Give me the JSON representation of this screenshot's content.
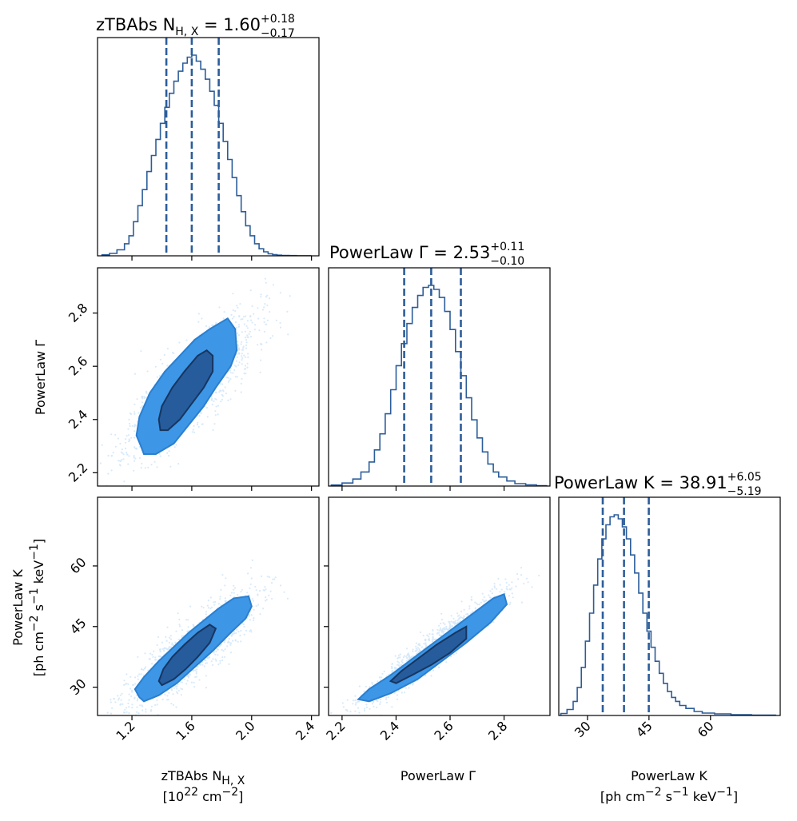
{
  "chart_data": {
    "type": "corner",
    "colors": {
      "line": "#2c5d9a",
      "outer_fill": "#3d96e6",
      "inner_fill": "#265c9c",
      "inner_edge": "#17355f",
      "scatter": "#d4e8fa"
    },
    "parameters": [
      {
        "name": "nh",
        "range": [
          0.97,
          2.45
        ],
        "ticks": [
          1.2,
          1.6,
          2.0,
          2.4
        ],
        "tick_labels": [
          "1.2",
          "1.6",
          "2.0",
          "2.4"
        ],
        "label_main": "zTBAbs N",
        "label_sub": "H, X",
        "label_line2_a": "[10",
        "label_line2_sup": "22",
        "label_line2_b": " cm",
        "label_line2_sup2": "−2",
        "label_line2_c": "]",
        "title_prefix": "zTBAbs N",
        "title_sub": "H, X",
        "title_mid": " = 1.60",
        "title_plus": "+0.18",
        "title_minus": "−0.17",
        "median": 1.6,
        "q16": 1.43,
        "q84": 1.78,
        "hist_x": [
          1.0,
          1.05,
          1.1,
          1.15,
          1.18,
          1.21,
          1.24,
          1.27,
          1.3,
          1.33,
          1.36,
          1.39,
          1.42,
          1.45,
          1.48,
          1.51,
          1.54,
          1.57,
          1.6,
          1.63,
          1.66,
          1.69,
          1.72,
          1.75,
          1.78,
          1.81,
          1.84,
          1.87,
          1.9,
          1.93,
          1.96,
          1.99,
          2.02,
          2.05,
          2.08,
          2.11,
          2.14,
          2.17,
          2.2,
          2.25,
          2.3,
          2.4
        ],
        "hist_y": [
          0.005,
          0.012,
          0.03,
          0.06,
          0.1,
          0.17,
          0.25,
          0.33,
          0.42,
          0.5,
          0.58,
          0.66,
          0.74,
          0.81,
          0.87,
          0.92,
          0.96,
          0.99,
          1.0,
          0.97,
          0.93,
          0.88,
          0.82,
          0.75,
          0.66,
          0.57,
          0.48,
          0.39,
          0.3,
          0.22,
          0.15,
          0.1,
          0.06,
          0.035,
          0.02,
          0.01,
          0.006,
          0.003,
          0.002,
          0.001,
          0.0005,
          0.0
        ]
      },
      {
        "name": "gamma",
        "range": [
          2.15,
          2.97
        ],
        "ticks": [
          2.2,
          2.4,
          2.6,
          2.8
        ],
        "tick_labels": [
          "2.2",
          "2.4",
          "2.6",
          "2.8"
        ],
        "label_main": "PowerLaw Γ",
        "title_prefix": "PowerLaw Γ",
        "title_mid": " = 2.53",
        "title_plus": "+0.11",
        "title_minus": "−0.10",
        "median": 2.53,
        "q16": 2.43,
        "q84": 2.64,
        "hist_x": [
          2.16,
          2.2,
          2.24,
          2.27,
          2.3,
          2.32,
          2.34,
          2.36,
          2.38,
          2.4,
          2.42,
          2.44,
          2.46,
          2.48,
          2.5,
          2.52,
          2.54,
          2.56,
          2.58,
          2.6,
          2.62,
          2.64,
          2.66,
          2.68,
          2.7,
          2.72,
          2.74,
          2.76,
          2.78,
          2.81,
          2.84,
          2.88,
          2.92,
          2.96
        ],
        "hist_y": [
          0.005,
          0.015,
          0.035,
          0.07,
          0.12,
          0.18,
          0.26,
          0.36,
          0.48,
          0.6,
          0.71,
          0.81,
          0.89,
          0.95,
          0.99,
          1.0,
          0.98,
          0.94,
          0.87,
          0.78,
          0.67,
          0.55,
          0.44,
          0.33,
          0.24,
          0.17,
          0.11,
          0.07,
          0.045,
          0.025,
          0.012,
          0.006,
          0.002,
          0.0
        ]
      },
      {
        "name": "k",
        "range": [
          23.0,
          77.0
        ],
        "ticks": [
          30,
          45,
          60
        ],
        "tick_labels": [
          "30",
          "45",
          "60"
        ],
        "label_main": "PowerLaw K",
        "label_line2_a": "[ph cm",
        "label_line2_sup": "−2",
        "label_line2_b": " s",
        "label_line2_sup2": "−1",
        "label_line2_c": " keV",
        "label_line2_sup3": "−1",
        "label_line2_d": "]",
        "title_prefix": "PowerLaw K",
        "title_mid": " = 38.91",
        "title_plus": "+6.05",
        "title_minus": "−5.19",
        "median": 38.91,
        "q16": 33.72,
        "q84": 44.96,
        "hist_x": [
          23.5,
          25.0,
          26.5,
          27.5,
          28.5,
          29.5,
          30.5,
          31.5,
          32.5,
          33.5,
          34.5,
          35.5,
          36.5,
          37.5,
          38.5,
          39.5,
          40.5,
          41.5,
          42.5,
          43.5,
          44.5,
          45.5,
          46.5,
          47.5,
          48.5,
          49.5,
          50.5,
          51.5,
          52.5,
          54.0,
          56.0,
          58.0,
          61.0,
          65.0,
          70.0,
          76.0
        ],
        "hist_y": [
          0.01,
          0.03,
          0.07,
          0.14,
          0.24,
          0.37,
          0.51,
          0.65,
          0.78,
          0.88,
          0.95,
          0.99,
          1.0,
          0.98,
          0.94,
          0.88,
          0.8,
          0.71,
          0.61,
          0.51,
          0.42,
          0.34,
          0.27,
          0.21,
          0.16,
          0.12,
          0.09,
          0.07,
          0.05,
          0.035,
          0.02,
          0.012,
          0.008,
          0.004,
          0.002,
          0.0
        ]
      }
    ],
    "pairs": [
      {
        "x": "nh",
        "y": "gamma",
        "inner": [
          [
            1.38,
            2.4
          ],
          [
            1.4,
            2.45
          ],
          [
            1.47,
            2.52
          ],
          [
            1.55,
            2.58
          ],
          [
            1.64,
            2.64
          ],
          [
            1.7,
            2.66
          ],
          [
            1.74,
            2.64
          ],
          [
            1.74,
            2.58
          ],
          [
            1.68,
            2.52
          ],
          [
            1.6,
            2.46
          ],
          [
            1.52,
            2.4
          ],
          [
            1.44,
            2.36
          ],
          [
            1.39,
            2.36
          ]
        ],
        "outer": [
          [
            1.26,
            2.3
          ],
          [
            1.23,
            2.34
          ],
          [
            1.25,
            2.41
          ],
          [
            1.32,
            2.5
          ],
          [
            1.42,
            2.58
          ],
          [
            1.52,
            2.64
          ],
          [
            1.62,
            2.7
          ],
          [
            1.72,
            2.74
          ],
          [
            1.84,
            2.78
          ],
          [
            1.89,
            2.74
          ],
          [
            1.9,
            2.66
          ],
          [
            1.86,
            2.6
          ],
          [
            1.76,
            2.52
          ],
          [
            1.68,
            2.45
          ],
          [
            1.58,
            2.38
          ],
          [
            1.48,
            2.31
          ],
          [
            1.36,
            2.27
          ],
          [
            1.28,
            2.27
          ]
        ],
        "scatter": {
          "mean": [
            1.6,
            2.53
          ],
          "sd": [
            0.17,
            0.105
          ],
          "rho": 0.8,
          "n": 1400,
          "seed": 11
        }
      },
      {
        "x": "nh",
        "y": "k",
        "inner": [
          [
            1.38,
            31.5
          ],
          [
            1.41,
            34.5
          ],
          [
            1.47,
            37.5
          ],
          [
            1.55,
            40.5
          ],
          [
            1.64,
            43.5
          ],
          [
            1.72,
            45.5
          ],
          [
            1.76,
            44.5
          ],
          [
            1.72,
            41.0
          ],
          [
            1.64,
            37.5
          ],
          [
            1.56,
            34.5
          ],
          [
            1.48,
            32.0
          ],
          [
            1.4,
            30.5
          ]
        ],
        "outer": [
          [
            1.25,
            27.5
          ],
          [
            1.22,
            29.5
          ],
          [
            1.28,
            32.5
          ],
          [
            1.38,
            36.5
          ],
          [
            1.48,
            40.0
          ],
          [
            1.58,
            43.5
          ],
          [
            1.68,
            46.5
          ],
          [
            1.78,
            49.5
          ],
          [
            1.88,
            52.0
          ],
          [
            1.98,
            52.5
          ],
          [
            2.0,
            50.0
          ],
          [
            1.96,
            47.0
          ],
          [
            1.86,
            43.5
          ],
          [
            1.74,
            39.0
          ],
          [
            1.62,
            35.0
          ],
          [
            1.5,
            31.0
          ],
          [
            1.38,
            28.0
          ],
          [
            1.28,
            26.5
          ]
        ],
        "scatter": {
          "mean": [
            1.6,
            38.9
          ],
          "sd": [
            0.17,
            5.6
          ],
          "rho": 0.85,
          "n": 1400,
          "seed": 23
        }
      },
      {
        "x": "gamma",
        "y": "k",
        "inner": [
          [
            2.38,
            31.5
          ],
          [
            2.42,
            34.0
          ],
          [
            2.48,
            37.0
          ],
          [
            2.55,
            40.5
          ],
          [
            2.62,
            43.5
          ],
          [
            2.66,
            45.0
          ],
          [
            2.66,
            42.0
          ],
          [
            2.6,
            38.5
          ],
          [
            2.53,
            35.5
          ],
          [
            2.46,
            33.0
          ],
          [
            2.4,
            31.0
          ]
        ],
        "outer": [
          [
            2.26,
            27.0
          ],
          [
            2.3,
            29.5
          ],
          [
            2.38,
            33.0
          ],
          [
            2.46,
            37.0
          ],
          [
            2.54,
            41.0
          ],
          [
            2.62,
            45.0
          ],
          [
            2.7,
            49.0
          ],
          [
            2.76,
            52.0
          ],
          [
            2.8,
            53.0
          ],
          [
            2.81,
            50.5
          ],
          [
            2.75,
            46.0
          ],
          [
            2.66,
            41.0
          ],
          [
            2.57,
            36.5
          ],
          [
            2.48,
            32.0
          ],
          [
            2.38,
            28.5
          ],
          [
            2.3,
            26.5
          ]
        ],
        "scatter": {
          "mean": [
            2.53,
            38.9
          ],
          "sd": [
            0.105,
            5.6
          ],
          "rho": 0.95,
          "n": 1400,
          "seed": 37
        }
      }
    ]
  }
}
